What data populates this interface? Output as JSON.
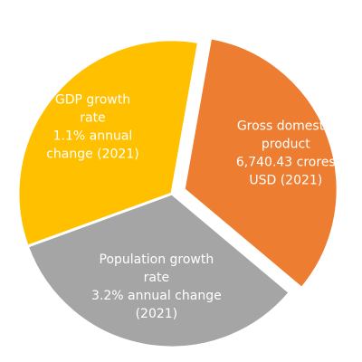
{
  "chart_data": {
    "type": "pie",
    "title": "",
    "slices": [
      {
        "category": "Gross domestic product",
        "value": 1,
        "color": "#ED7D31",
        "exploded": true,
        "lines": [
          "Gross domestic",
          "product",
          "6,740.43 crores",
          "USD (2021)"
        ]
      },
      {
        "category": "Population growth rate",
        "value": 1,
        "color": "#A5A5A5",
        "exploded": false,
        "lines": [
          "Population growth",
          "rate",
          "3.2% annual change",
          "(2021)"
        ]
      },
      {
        "category": "GDP growth rate",
        "value": 1,
        "color": "#FFC000",
        "exploded": false,
        "lines": [
          "GDP growth",
          "rate",
          "1.1% annual",
          "change (2021)"
        ]
      }
    ]
  }
}
